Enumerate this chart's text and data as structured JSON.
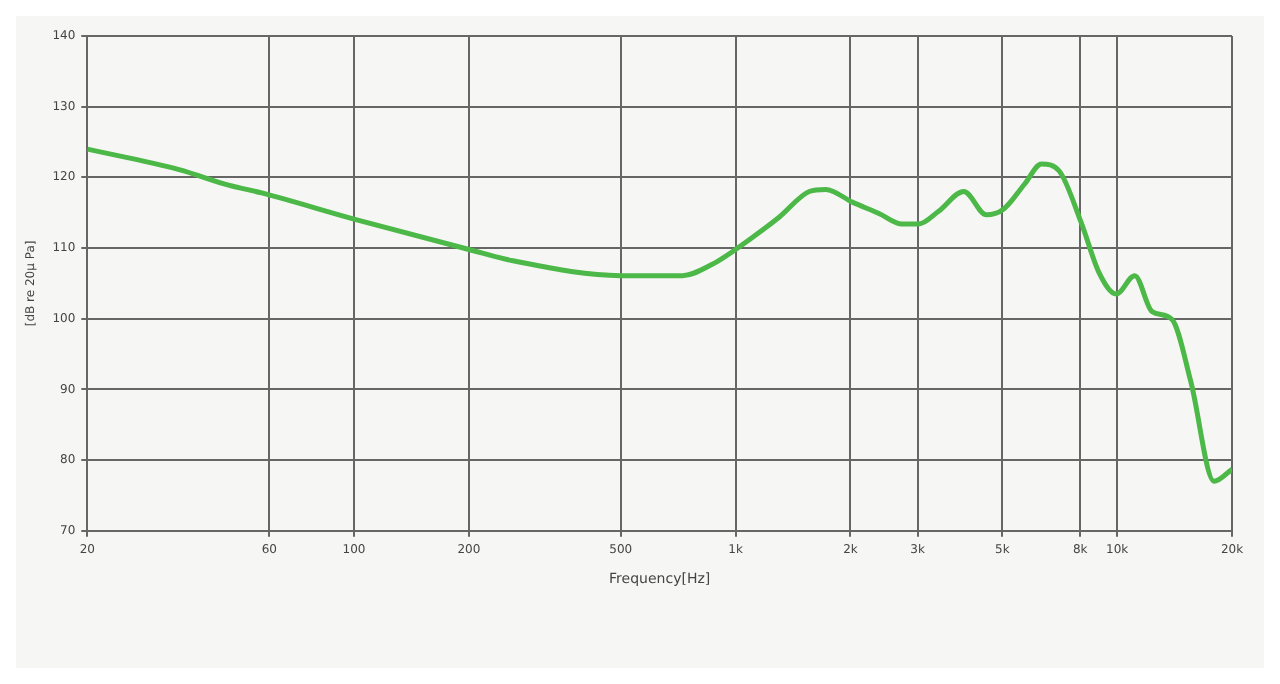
{
  "chart_data": {
    "type": "line",
    "xlabel": "Frequency[Hz]",
    "ylabel": "[dB re 20µ Pa]",
    "x": [
      20,
      34.8,
      46.9,
      57.3,
      100,
      200,
      261,
      500,
      726,
      869,
      1000,
      1303,
      1560,
      1723,
      2023,
      2375,
      2730,
      3020,
      3405,
      3965,
      4540,
      5035,
      5730,
      6330,
      7050,
      8050,
      8970,
      9950,
      11120,
      12350,
      13930,
      15600,
      17950,
      20000
    ],
    "series": [
      {
        "color": "#4cb848",
        "values": [
          124,
          121.1,
          118.9,
          117.8,
          114.1,
          109.8,
          108.2,
          106.1,
          106.1,
          107.7,
          109.8,
          114.4,
          118,
          118.3,
          116.5,
          114.9,
          113.4,
          113.4,
          115.2,
          118,
          114.7,
          115.5,
          119.1,
          121.9,
          120.9,
          113.6,
          106.5,
          103.5,
          106.1,
          101,
          99.9,
          91.1,
          77,
          78.7
        ]
      }
    ],
    "log": "x",
    "xlim": [
      20,
      20000
    ],
    "xticks": [
      20,
      60,
      100,
      200,
      500,
      {
        "value": 1000,
        "label": "1k"
      },
      {
        "value": 2000,
        "label": "2k"
      },
      {
        "value": 3000,
        "label": "3k"
      },
      {
        "value": 5000,
        "label": "5k"
      },
      {
        "value": 8000,
        "label": "8k"
      },
      {
        "value": 10000,
        "label": "10k"
      },
      {
        "value": 20000,
        "label": "20k"
      }
    ],
    "ylim": [
      70,
      140
    ],
    "yticks": [
      70,
      80,
      90,
      100,
      110,
      120,
      130,
      140
    ],
    "grid": true,
    "legend": false,
    "marker": "none",
    "line_style": "solid"
  }
}
